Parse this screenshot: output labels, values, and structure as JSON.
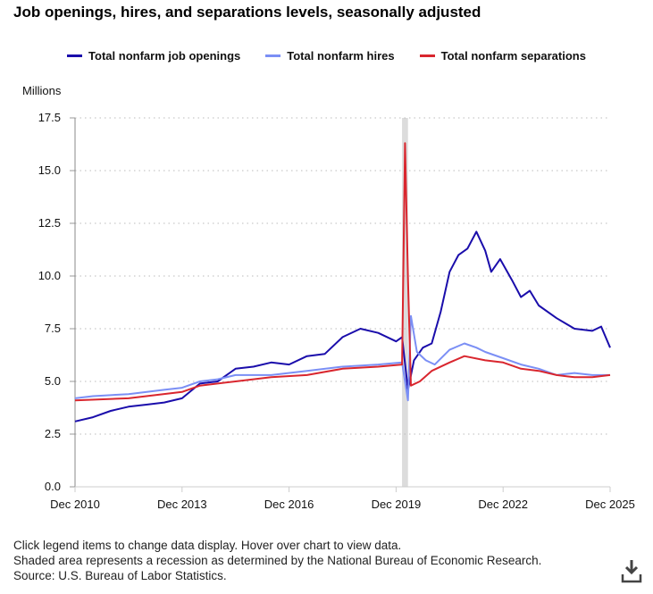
{
  "chart_data": {
    "type": "line",
    "title": "Job openings, hires, and separations levels, seasonally adjusted",
    "ylabel": "Millions",
    "ylim": [
      0,
      17.5
    ],
    "yticks": [
      "0.0",
      "2.5",
      "5.0",
      "7.5",
      "10.0",
      "12.5",
      "15.0",
      "17.5"
    ],
    "xlim": [
      "2010-12",
      "2025-12"
    ],
    "xticks": [
      {
        "date": "2010-12",
        "label": "Dec 2010"
      },
      {
        "date": "2013-12",
        "label": "Dec 2013"
      },
      {
        "date": "2016-12",
        "label": "Dec 2016"
      },
      {
        "date": "2019-12",
        "label": "Dec 2019"
      },
      {
        "date": "2022-12",
        "label": "Dec 2022"
      },
      {
        "date": "2025-12",
        "label": "Dec 2025"
      }
    ],
    "grid": "horizontal dotted",
    "legend": "top",
    "recession": [
      "2020-02",
      "2020-04"
    ],
    "series": [
      {
        "name": "Total nonfarm job openings",
        "color": "#1a0dab",
        "points": [
          [
            "2010-12",
            3.1
          ],
          [
            "2011-06",
            3.3
          ],
          [
            "2011-12",
            3.6
          ],
          [
            "2012-06",
            3.8
          ],
          [
            "2012-12",
            3.9
          ],
          [
            "2013-06",
            4.0
          ],
          [
            "2013-12",
            4.2
          ],
          [
            "2014-06",
            4.9
          ],
          [
            "2014-12",
            5.0
          ],
          [
            "2015-06",
            5.6
          ],
          [
            "2015-12",
            5.7
          ],
          [
            "2016-06",
            5.9
          ],
          [
            "2016-12",
            5.8
          ],
          [
            "2017-06",
            6.2
          ],
          [
            "2017-12",
            6.3
          ],
          [
            "2018-06",
            7.1
          ],
          [
            "2018-12",
            7.5
          ],
          [
            "2019-06",
            7.3
          ],
          [
            "2019-12",
            6.9
          ],
          [
            "2020-02",
            7.1
          ],
          [
            "2020-04",
            4.6
          ],
          [
            "2020-06",
            6.0
          ],
          [
            "2020-09",
            6.6
          ],
          [
            "2020-12",
            6.8
          ],
          [
            "2021-03",
            8.3
          ],
          [
            "2021-06",
            10.2
          ],
          [
            "2021-09",
            11.0
          ],
          [
            "2021-12",
            11.3
          ],
          [
            "2022-03",
            12.1
          ],
          [
            "2022-06",
            11.2
          ],
          [
            "2022-08",
            10.2
          ],
          [
            "2022-11",
            10.8
          ],
          [
            "2023-03",
            9.8
          ],
          [
            "2023-06",
            9.0
          ],
          [
            "2023-09",
            9.3
          ],
          [
            "2023-12",
            8.6
          ],
          [
            "2024-06",
            8.0
          ],
          [
            "2024-12",
            7.5
          ],
          [
            "2025-06",
            7.4
          ],
          [
            "2025-09",
            7.6
          ],
          [
            "2025-12",
            6.6
          ]
        ]
      },
      {
        "name": "Total nonfarm hires",
        "color": "#7b8ff5",
        "points": [
          [
            "2010-12",
            4.2
          ],
          [
            "2011-06",
            4.3
          ],
          [
            "2012-06",
            4.4
          ],
          [
            "2013-06",
            4.6
          ],
          [
            "2013-12",
            4.7
          ],
          [
            "2014-06",
            5.0
          ],
          [
            "2014-12",
            5.1
          ],
          [
            "2015-06",
            5.3
          ],
          [
            "2016-06",
            5.3
          ],
          [
            "2017-06",
            5.5
          ],
          [
            "2018-06",
            5.7
          ],
          [
            "2019-06",
            5.8
          ],
          [
            "2020-02",
            5.9
          ],
          [
            "2020-04",
            4.1
          ],
          [
            "2020-05",
            8.1
          ],
          [
            "2020-07",
            6.4
          ],
          [
            "2020-10",
            6.0
          ],
          [
            "2021-01",
            5.8
          ],
          [
            "2021-06",
            6.5
          ],
          [
            "2021-11",
            6.8
          ],
          [
            "2022-03",
            6.6
          ],
          [
            "2022-06",
            6.4
          ],
          [
            "2022-12",
            6.1
          ],
          [
            "2023-06",
            5.8
          ],
          [
            "2023-12",
            5.6
          ],
          [
            "2024-06",
            5.3
          ],
          [
            "2024-12",
            5.4
          ],
          [
            "2025-06",
            5.3
          ],
          [
            "2025-12",
            5.3
          ]
        ]
      },
      {
        "name": "Total nonfarm separations",
        "color": "#d9262e",
        "points": [
          [
            "2010-12",
            4.1
          ],
          [
            "2012-06",
            4.2
          ],
          [
            "2013-12",
            4.5
          ],
          [
            "2014-06",
            4.8
          ],
          [
            "2015-06",
            5.0
          ],
          [
            "2016-06",
            5.2
          ],
          [
            "2017-06",
            5.3
          ],
          [
            "2018-06",
            5.6
          ],
          [
            "2019-06",
            5.7
          ],
          [
            "2020-02",
            5.8
          ],
          [
            "2020-03",
            16.3
          ],
          [
            "2020-04",
            9.9
          ],
          [
            "2020-05",
            4.8
          ],
          [
            "2020-08",
            5.0
          ],
          [
            "2020-12",
            5.5
          ],
          [
            "2021-06",
            5.9
          ],
          [
            "2021-11",
            6.2
          ],
          [
            "2022-06",
            6.0
          ],
          [
            "2022-12",
            5.9
          ],
          [
            "2023-06",
            5.6
          ],
          [
            "2023-12",
            5.5
          ],
          [
            "2024-06",
            5.3
          ],
          [
            "2024-12",
            5.2
          ],
          [
            "2025-06",
            5.2
          ],
          [
            "2025-12",
            5.3
          ]
        ]
      }
    ]
  },
  "notes": [
    "Click legend items to change data display. Hover over chart to view data.",
    "Shaded area represents a recession as determined by the National Bureau of Economic Research.",
    "Source: U.S. Bureau of Labor Statistics."
  ],
  "download_icon": "download-icon"
}
